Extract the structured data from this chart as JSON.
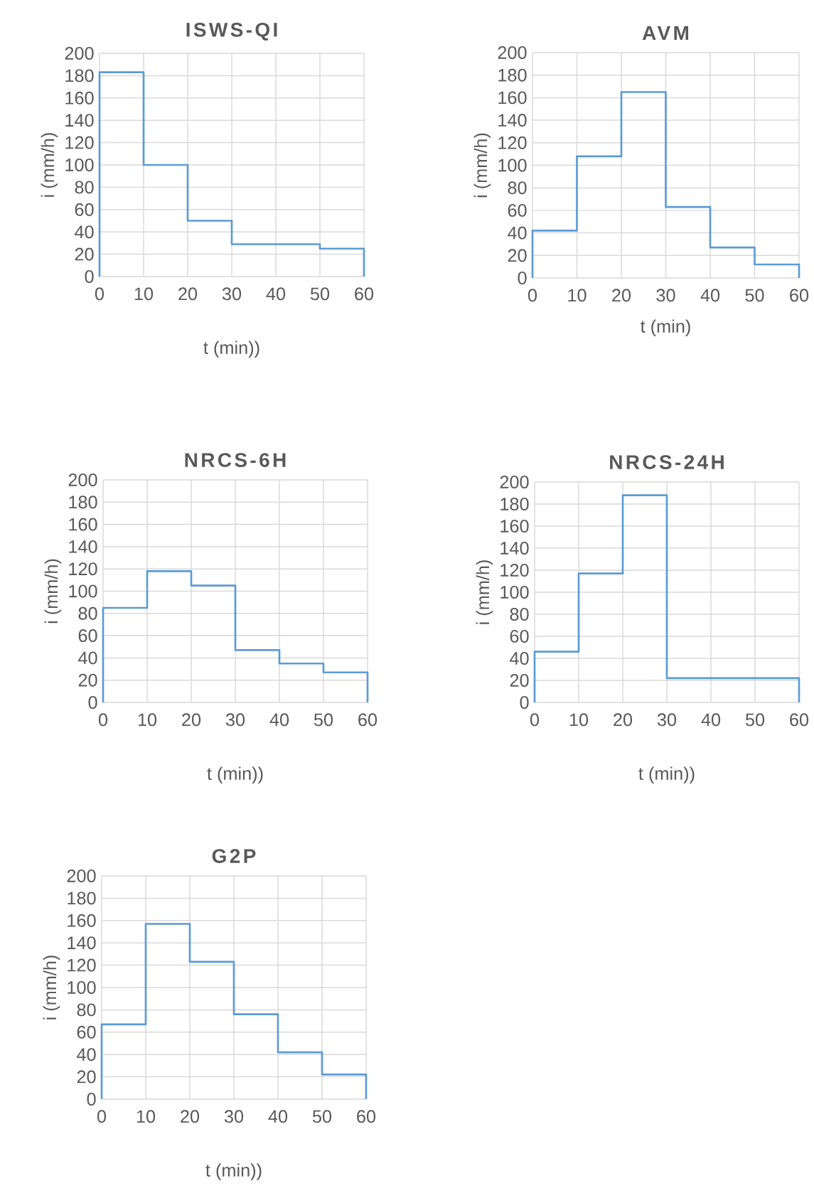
{
  "chart_data": [
    {
      "type": "step",
      "title": "ISWS-QI",
      "xlabel": "t (min))",
      "ylabel": "i (mm/h)",
      "x": [
        0,
        0,
        10,
        20,
        30,
        40,
        50,
        60
      ],
      "values": [
        0,
        183,
        100,
        50,
        29,
        29,
        25,
        0
      ],
      "color": "#5b9bd5",
      "xlim": [
        0,
        60
      ],
      "ylim": [
        0,
        200
      ],
      "xticks": [
        0,
        10,
        20,
        30,
        40,
        50,
        60
      ],
      "yticks": [
        0,
        20,
        40,
        60,
        80,
        100,
        120,
        140,
        160,
        180,
        200
      ],
      "grid": true
    },
    {
      "type": "step",
      "title": "AVM",
      "xlabel": "t (min)",
      "ylabel": "i (mm/h)",
      "x": [
        0,
        0,
        10,
        20,
        30,
        40,
        50,
        60
      ],
      "values": [
        0,
        42,
        108,
        165,
        63,
        27,
        12,
        0
      ],
      "color": "#5b9bd5",
      "xlim": [
        0,
        60
      ],
      "ylim": [
        0,
        200
      ],
      "xticks": [
        0,
        10,
        20,
        30,
        40,
        50,
        60
      ],
      "yticks": [
        0,
        20,
        40,
        60,
        80,
        100,
        120,
        140,
        160,
        180,
        200
      ],
      "grid": true
    },
    {
      "type": "step",
      "title": "NRCS-6H",
      "xlabel": "t (min))",
      "ylabel": "i (mm/h)",
      "x": [
        0,
        0,
        10,
        20,
        30,
        40,
        50,
        60
      ],
      "values": [
        0,
        85,
        118,
        105,
        47,
        35,
        27,
        0
      ],
      "color": "#5b9bd5",
      "xlim": [
        0,
        60
      ],
      "ylim": [
        0,
        200
      ],
      "xticks": [
        0,
        10,
        20,
        30,
        40,
        50,
        60
      ],
      "yticks": [
        0,
        20,
        40,
        60,
        80,
        100,
        120,
        140,
        160,
        180,
        200
      ],
      "grid": true
    },
    {
      "type": "step",
      "title": "NRCS-24H",
      "xlabel": "t (min))",
      "ylabel": "i (mm/h)",
      "x": [
        0,
        0,
        10,
        20,
        30,
        40,
        50,
        60
      ],
      "values": [
        0,
        46,
        117,
        188,
        22,
        22,
        22,
        0
      ],
      "color": "#5b9bd5",
      "xlim": [
        0,
        60
      ],
      "ylim": [
        0,
        200
      ],
      "xticks": [
        0,
        10,
        20,
        30,
        40,
        50,
        60
      ],
      "yticks": [
        0,
        20,
        40,
        60,
        80,
        100,
        120,
        140,
        160,
        180,
        200
      ],
      "grid": true
    },
    {
      "type": "step",
      "title": "G2P",
      "xlabel": "t (min))",
      "ylabel": "i (mm/h)",
      "x": [
        0,
        0,
        10,
        20,
        30,
        40,
        50,
        60
      ],
      "values": [
        0,
        67,
        157,
        123,
        76,
        42,
        22,
        0
      ],
      "color": "#5b9bd5",
      "xlim": [
        0,
        60
      ],
      "ylim": [
        0,
        200
      ],
      "xticks": [
        0,
        10,
        20,
        30,
        40,
        50,
        60
      ],
      "yticks": [
        0,
        20,
        40,
        60,
        80,
        100,
        120,
        140,
        160,
        180,
        200
      ],
      "grid": true
    }
  ]
}
